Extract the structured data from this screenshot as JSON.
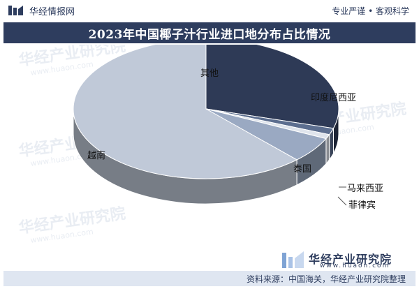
{
  "header": {
    "brand": "华经情报网",
    "tagline": "专业严谨 • 客观科学"
  },
  "title": "2023年中国椰子汁行业进口地分布占比情况",
  "chart_data": {
    "type": "pie",
    "title": "2023年中国椰子汁行业进口地分布占比情况",
    "three_d": true,
    "labels": [
      "印度尼西亚",
      "马来西亚",
      "菲律宾",
      "泰国",
      "越南",
      "其他"
    ],
    "values": [
      29.5,
      1.5,
      1.0,
      6.0,
      62.0,
      0.0
    ],
    "colors": [
      "#2e3a56",
      "#5c6e8f",
      "#dfe4ec",
      "#9aa9c2",
      "#c0c9d8",
      "#7a8aa6"
    ],
    "legend": "none"
  },
  "watermark": {
    "cn": "华经产业研究院",
    "url": "www.huaon.com"
  },
  "footer": {
    "brand": "华经产业研究院",
    "url": "www.huaon.com",
    "source": "资料来源：中国海关，华经产业研究院整理"
  }
}
